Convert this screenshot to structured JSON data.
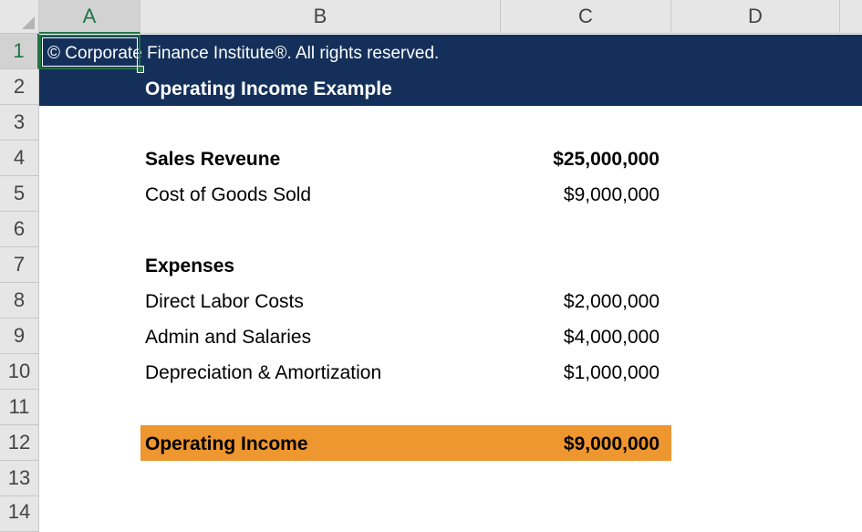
{
  "columns": [
    "A",
    "B",
    "C",
    "D"
  ],
  "rows": [
    "1",
    "2",
    "3",
    "4",
    "5",
    "6",
    "7",
    "8",
    "9",
    "10",
    "11",
    "12",
    "13",
    "14"
  ],
  "cells": {
    "a1": "© Corporate Finance Institute®. All rights reserved.",
    "b2": "Operating Income Example",
    "b4": "Sales Reveune",
    "c4": "$25,000,000",
    "b5": "Cost of Goods Sold",
    "c5": "$9,000,000",
    "b7": "Expenses",
    "b8": "Direct Labor Costs",
    "c8": "$2,000,000",
    "b9": "Admin and Salaries",
    "c9": "$4,000,000",
    "b10": "Depreciation & Amortization",
    "c10": "$1,000,000",
    "b12": "Operating Income",
    "c12": "$9,000,000"
  },
  "selected_cell": "A1",
  "colors": {
    "header_band": "#14305a",
    "highlight": "#ee962f",
    "selection": "#217346"
  }
}
